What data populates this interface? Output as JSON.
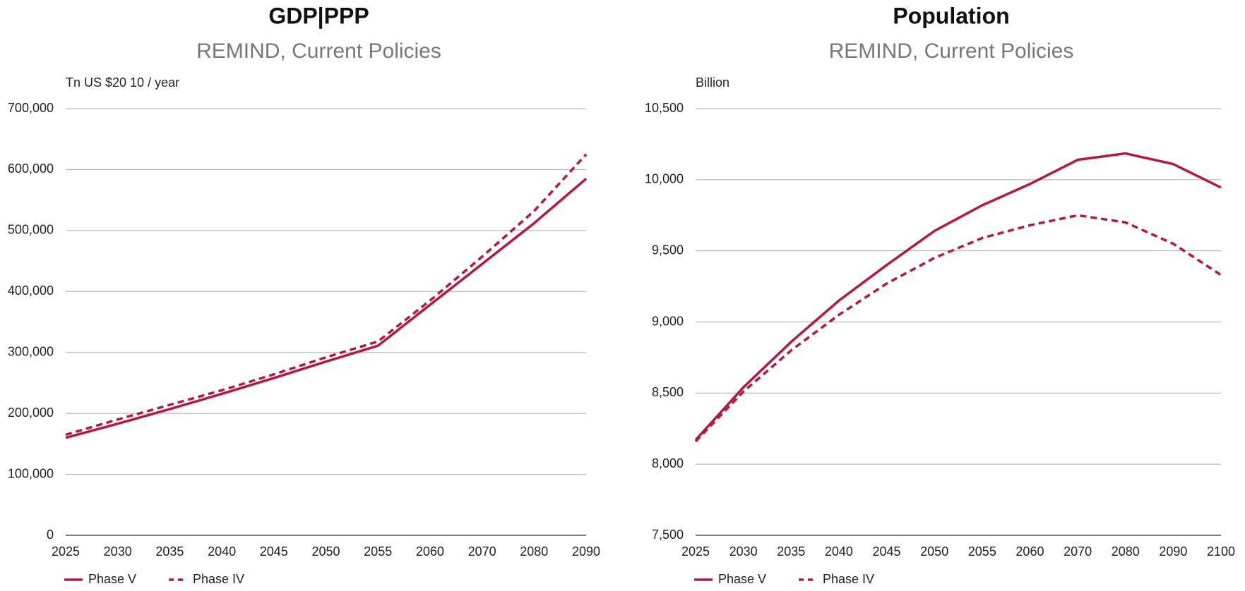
{
  "chart_data": [
    {
      "type": "line",
      "title": "GDP|PPP",
      "subtitle": "REMIND, Current Policies",
      "ylabel": "Tn US $20 10 / year",
      "categories": [
        "2025",
        "2030",
        "2035",
        "2040",
        "2045",
        "2050",
        "2055",
        "2060",
        "2070",
        "2080",
        "2090"
      ],
      "series": [
        {
          "name": "Phase V",
          "color": "#b5173f",
          "style": "solid",
          "values": [
            160000,
            183000,
            207000,
            232000,
            258000,
            285000,
            311000,
            378000,
            445000,
            512000,
            585000
          ]
        },
        {
          "name": "Phase IV",
          "color": "#b5173f",
          "style": "dashed",
          "values": [
            165000,
            190000,
            214000,
            238000,
            264000,
            292000,
            318000,
            385000,
            457000,
            532000,
            625000
          ]
        }
      ],
      "ylim": [
        0,
        700000
      ],
      "yticks": [
        0,
        {
          "value": 100000,
          "label": "100,000"
        },
        {
          "value": 200000,
          "label": "200,000"
        },
        {
          "value": 300000,
          "label": "300,000"
        },
        {
          "value": 400000,
          "label": "400,000"
        },
        {
          "value": 500000,
          "label": "500,000"
        },
        {
          "value": 600000,
          "label": "600,000"
        },
        {
          "value": 700000,
          "label": "700,000"
        }
      ],
      "grid": true
    },
    {
      "type": "line",
      "title": "Population",
      "subtitle": "REMIND, Current Policies",
      "ylabel": "Billion",
      "categories": [
        "2025",
        "2030",
        "2035",
        "2040",
        "2045",
        "2050",
        "2055",
        "2060",
        "2070",
        "2080",
        "2090",
        "2100"
      ],
      "series": [
        {
          "name": "Phase V",
          "color": "#b5173f",
          "style": "solid",
          "values": [
            8170,
            8540,
            8860,
            9150,
            9400,
            9640,
            9820,
            9970,
            10140,
            10185,
            10110,
            9945
          ]
        },
        {
          "name": "Phase IV",
          "color": "#b5173f",
          "style": "dashed",
          "values": [
            8160,
            8510,
            8800,
            9050,
            9270,
            9450,
            9590,
            9680,
            9750,
            9700,
            9550,
            9330
          ]
        }
      ],
      "ylim": [
        7500,
        10500
      ],
      "yticks": [
        {
          "value": 7500,
          "label": "7,500"
        },
        {
          "value": 8000,
          "label": "8,000"
        },
        {
          "value": 8500,
          "label": "8,500"
        },
        {
          "value": 9000,
          "label": "9,000"
        },
        {
          "value": 9500,
          "label": "9,500"
        },
        {
          "value": 10000,
          "label": "10,000"
        },
        {
          "value": 10500,
          "label": "10,500"
        }
      ],
      "grid": true
    }
  ]
}
